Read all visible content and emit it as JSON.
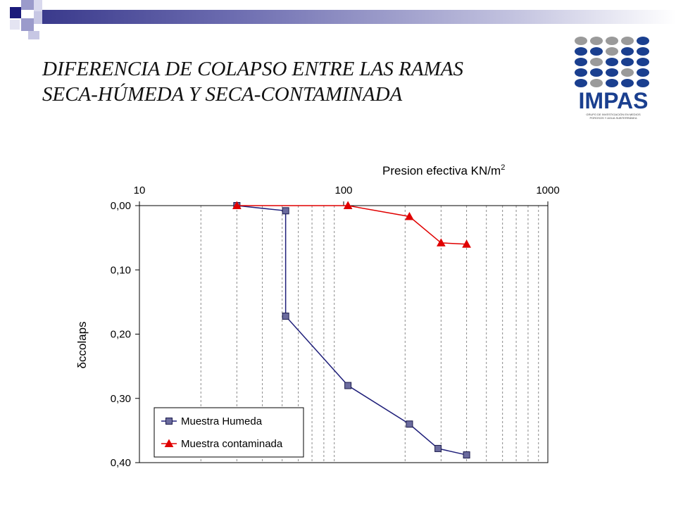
{
  "slide": {
    "title_line1": "DIFERENCIA DE COLAPSO ENTRE LAS RAMAS",
    "title_line2": "SECA-HÚMEDA Y SECA-CONTAMINADA"
  },
  "logo": {
    "text": "IMPAS",
    "subtitle_line1": "GRUPO DE INVESTIGACIÓN EN MEDIOS",
    "subtitle_line2": "POROSOS Y AGUA SUBTERRÁNEA",
    "primary_color": "#1a3f8f",
    "secondary_color": "#9a9a9a"
  },
  "chart_data": {
    "type": "line",
    "xlabel": "Presion efectiva KN/m",
    "xlabel_superscript": "2",
    "ylabel": "δccolaps",
    "x_scale": "log",
    "xlim": [
      10,
      1000
    ],
    "x_tick_labels": [
      "10",
      "100",
      "1000"
    ],
    "x_axis_position": "top",
    "ylim": [
      0,
      0.4
    ],
    "y_inverted": true,
    "y_ticks": [
      0,
      0.1,
      0.2,
      0.3,
      0.4
    ],
    "y_tick_labels": [
      "0,00",
      "0,10",
      "0,20",
      "0,30",
      "0,40"
    ],
    "grid": "vertical dashed at log minor ticks",
    "legend_position": "bottom-left",
    "series": [
      {
        "name": "Muestra Humeda",
        "color": "#1f1f7a",
        "marker_color": "#6b6b9e",
        "marker": "square",
        "x": [
          30,
          52,
          52,
          105,
          210,
          290,
          400
        ],
        "y": [
          0.0,
          0.008,
          0.172,
          0.28,
          0.34,
          0.378,
          0.388
        ]
      },
      {
        "name": "Muestra contaminada",
        "color": "#e00000",
        "marker_color": "#e00000",
        "marker": "triangle",
        "x": [
          30,
          105,
          210,
          300,
          400
        ],
        "y": [
          0.0,
          0.0,
          0.017,
          0.058,
          0.06
        ]
      }
    ]
  }
}
